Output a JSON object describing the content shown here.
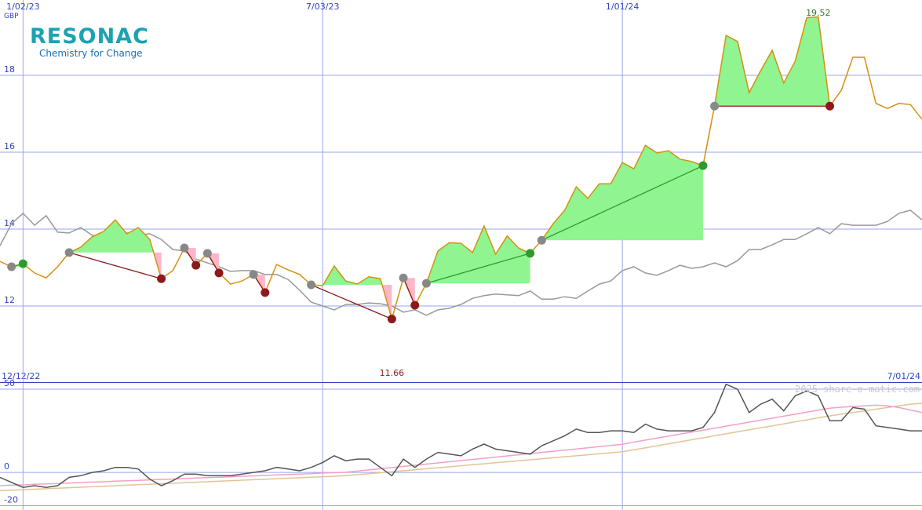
{
  "logo": {
    "name": "RESONAC",
    "tagline": "Chemistry for Change"
  },
  "watermark": "2025 share-o-matic.com",
  "chart_data": [
    {
      "type": "line",
      "ylabel": "GBP",
      "categories": [
        "12/12/22",
        null,
        "1/02/23",
        null,
        null,
        null,
        null,
        null,
        null,
        null,
        null,
        null,
        null,
        null,
        null,
        null,
        null,
        null,
        null,
        null,
        null,
        null,
        null,
        null,
        null,
        null,
        null,
        null,
        "7/03/23",
        null,
        null,
        null,
        null,
        null,
        null,
        null,
        null,
        null,
        null,
        null,
        null,
        null,
        null,
        null,
        null,
        null,
        null,
        null,
        null,
        null,
        null,
        null,
        null,
        null,
        "1/01/24",
        null,
        null,
        null,
        null,
        null,
        null,
        null,
        null,
        null,
        null,
        null,
        null,
        null,
        null,
        null,
        null,
        null,
        null,
        null,
        null,
        null,
        null,
        null,
        null,
        null,
        "7/01/24"
      ],
      "series": [
        {
          "color": "#d4910f",
          "values": [
            13.16,
            13.02,
            13.1,
            12.86,
            12.73,
            13.02,
            13.39,
            13.53,
            13.8,
            13.94,
            14.24,
            13.88,
            14.04,
            13.73,
            12.71,
            12.92,
            13.51,
            13.06,
            13.37,
            12.86,
            12.57,
            12.65,
            12.82,
            12.35,
            13.08,
            12.94,
            12.82,
            12.55,
            12.53,
            13.04,
            12.65,
            12.57,
            12.76,
            12.71,
            11.66,
            12.73,
            12.02,
            12.59,
            13.43,
            13.65,
            13.63,
            13.39,
            14.08,
            13.35,
            13.82,
            13.51,
            13.37,
            13.71,
            14.14,
            14.49,
            15.1,
            14.8,
            15.18,
            15.18,
            15.73,
            15.57,
            16.18,
            15.98,
            16.04,
            15.82,
            15.76,
            15.65,
            17.2,
            19.04,
            18.88,
            17.55,
            18.12,
            18.65,
            17.8,
            18.37,
            19.5,
            19.52,
            17.2,
            17.61,
            18.47,
            18.47,
            17.27,
            17.14,
            17.27,
            17.24,
            16.86
          ]
        },
        {
          "color": "#999999",
          "values": [
            13.57,
            14.14,
            14.41,
            14.1,
            14.35,
            13.92,
            13.9,
            14.04,
            13.84,
            13.76,
            13.86,
            13.9,
            13.84,
            13.88,
            13.73,
            13.47,
            13.43,
            13.22,
            13.12,
            13.02,
            12.9,
            12.92,
            12.92,
            12.82,
            12.82,
            12.69,
            12.41,
            12.1,
            12.0,
            11.9,
            12.04,
            12.04,
            12.08,
            12.06,
            12.0,
            11.84,
            11.9,
            11.76,
            11.9,
            11.94,
            12.04,
            12.2,
            12.27,
            12.31,
            12.29,
            12.27,
            12.39,
            12.18,
            12.18,
            12.24,
            12.2,
            12.39,
            12.57,
            12.65,
            12.92,
            13.02,
            12.86,
            12.8,
            12.92,
            13.06,
            12.98,
            13.02,
            13.12,
            13.02,
            13.18,
            13.47,
            13.47,
            13.59,
            13.73,
            13.73,
            13.88,
            14.04,
            13.88,
            14.14,
            14.1,
            14.1,
            14.1,
            14.2,
            14.41,
            14.49,
            14.24
          ]
        }
      ],
      "trades": [
        [
          1,
          2
        ],
        [
          6,
          14
        ],
        [
          16,
          17
        ],
        [
          18,
          19
        ],
        [
          22,
          23
        ],
        [
          27,
          34
        ],
        [
          35,
          36
        ],
        [
          37,
          46
        ],
        [
          47,
          61
        ],
        [
          62,
          72
        ]
      ],
      "gain_color": "#90f590",
      "loss_color": "#ffb6c8",
      "win_color": "#2e9a2e",
      "lose_color": "#8b1a1a",
      "entry_color": "#888888",
      "ylim": [
        10.02,
        19.96
      ],
      "yticks": [
        12,
        14,
        16,
        18
      ],
      "grid": true
    },
    {
      "type": "line",
      "series": [
        {
          "color": "#555555",
          "values": [
            -3,
            -6,
            -9,
            -8,
            -9,
            -8,
            -3,
            -2,
            0,
            1,
            3,
            3,
            2,
            -4,
            -8,
            -5,
            -1,
            -1,
            -2,
            -2,
            -2,
            -1,
            0,
            1,
            3,
            2,
            1,
            3,
            6,
            10,
            7,
            8,
            8,
            3,
            -2,
            8,
            3,
            8,
            12,
            11,
            10,
            14,
            17,
            14,
            13,
            12,
            11,
            16,
            19,
            22,
            26,
            24,
            24,
            25,
            25,
            24,
            29,
            26,
            25,
            25,
            25,
            27,
            36,
            53,
            50,
            36,
            41,
            44,
            37,
            46,
            49,
            46,
            31,
            31,
            39,
            38,
            28,
            27,
            26,
            25,
            25
          ]
        },
        {
          "color": "#f4a0c4",
          "values": [
            -8,
            -7.7,
            -7.5,
            -7.2,
            -6.9,
            -6.7,
            -6.4,
            -6.1,
            -5.8,
            -5.6,
            -5.3,
            -5,
            -4.8,
            -4.5,
            -4.2,
            -4,
            -3.7,
            -3.4,
            -3.1,
            -2.9,
            -2.6,
            -2.3,
            -2.1,
            -1.8,
            -1.5,
            -1.3,
            -1,
            -0.7,
            -0.4,
            -0.2,
            0.1,
            0.8,
            1.5,
            2.2,
            2.9,
            3.6,
            4.3,
            5,
            5.7,
            6.4,
            7.1,
            7.8,
            8.5,
            9.2,
            9.9,
            10.6,
            11.3,
            12,
            12.7,
            13.4,
            14.1,
            14.8,
            15.5,
            16.2,
            16.9,
            18.2,
            19.4,
            20.6,
            21.8,
            23,
            24.2,
            25.4,
            26.6,
            27.8,
            29,
            30.2,
            31.4,
            32.6,
            33.8,
            35,
            36.2,
            37.4,
            38.6,
            39.2,
            39.6,
            40,
            40.4,
            40,
            39,
            37.5,
            36
          ]
        },
        {
          "color": "#e2c496",
          "values": [
            -11,
            -10.7,
            -10.4,
            -10.1,
            -9.8,
            -9.5,
            -9.2,
            -8.9,
            -8.6,
            -8.3,
            -8,
            -7.7,
            -7.4,
            -7.1,
            -6.8,
            -6.5,
            -6.2,
            -5.9,
            -5.6,
            -5.3,
            -5,
            -4.7,
            -4.4,
            -4.1,
            -3.8,
            -3.5,
            -3.2,
            -2.9,
            -2.6,
            -2.3,
            -2,
            -1.4,
            -0.8,
            -0.2,
            0.4,
            1,
            1.6,
            2.2,
            2.8,
            3.4,
            4,
            4.6,
            5.2,
            5.8,
            6.4,
            7,
            7.6,
            8.2,
            8.8,
            9.4,
            10,
            10.6,
            11.2,
            11.8,
            12.4,
            13.6,
            14.8,
            16,
            17.2,
            18.4,
            19.6,
            20.8,
            22,
            23.2,
            24.4,
            25.6,
            26.8,
            28,
            29.2,
            30.4,
            31.6,
            32.8,
            34,
            35,
            36,
            37,
            38,
            39,
            40,
            41,
            41.5
          ]
        }
      ],
      "ylim": [
        -22.6,
        53.8
      ],
      "yticks": [
        -20,
        0,
        50
      ],
      "grid": true
    }
  ]
}
